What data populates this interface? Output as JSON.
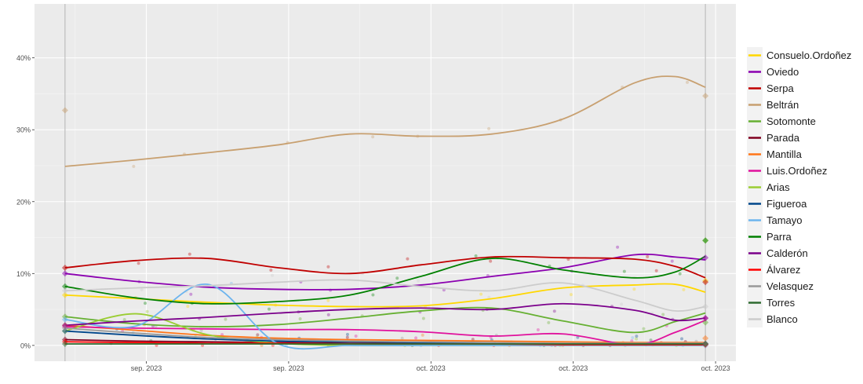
{
  "chart_data": {
    "type": "line",
    "title": "",
    "xlabel": "",
    "ylabel": "",
    "x_unit": "days from first poll",
    "xlim": [
      -3,
      66
    ],
    "ylim": [
      -2.2,
      47.5
    ],
    "grid": true,
    "legend_position": "right",
    "x_ticks": [
      {
        "x": 8,
        "label": "sep. 2023"
      },
      {
        "x": 22,
        "label": "sep. 2023"
      },
      {
        "x": 36,
        "label": "oct. 2023"
      },
      {
        "x": 50,
        "label": "oct. 2023"
      },
      {
        "x": 64,
        "label": "oct. 2023"
      }
    ],
    "y_ticks": [
      {
        "y": 0,
        "label": "0%"
      },
      {
        "y": 10,
        "label": "10%"
      },
      {
        "y": 20,
        "label": "20%"
      },
      {
        "y": 30,
        "label": "30%"
      },
      {
        "y": 40,
        "label": "40%"
      }
    ],
    "reference_lines_x": [
      0,
      63
    ],
    "x": [
      0,
      7,
      14,
      21,
      28,
      35,
      42,
      49,
      56,
      60,
      63
    ],
    "series": [
      {
        "name": "Consuelo.Ordoñez",
        "color": "#ffd700",
        "values": [
          7.0,
          6.5,
          6.0,
          5.6,
          5.4,
          5.5,
          6.5,
          8.0,
          8.4,
          8.5,
          7.4
        ],
        "end_marker": 9.0
      },
      {
        "name": "Oviedo",
        "color": "#8b00b0",
        "values": [
          10.0,
          8.9,
          8.1,
          7.8,
          7.8,
          8.4,
          9.6,
          10.8,
          12.6,
          12.3,
          11.9
        ],
        "end_marker": 12.2
      },
      {
        "name": "Serpa",
        "color": "#c00000",
        "values": [
          10.8,
          11.8,
          12.1,
          10.8,
          10.0,
          11.2,
          12.3,
          12.2,
          12.0,
          11.0,
          9.4
        ],
        "end_marker": 8.8
      },
      {
        "name": "Beltrán",
        "color": "#c8a070",
        "values": [
          24.9,
          25.8,
          26.8,
          27.9,
          29.4,
          29.1,
          29.4,
          31.5,
          36.5,
          37.4,
          35.9
        ],
        "end_marker": 34.7,
        "start_marker": 32.7
      },
      {
        "name": "Sotomonte",
        "color": "#66b032",
        "values": [
          4.0,
          3.0,
          2.6,
          2.9,
          3.8,
          4.8,
          5.2,
          3.4,
          1.8,
          3.3,
          4.5
        ],
        "end_marker": 3.2
      },
      {
        "name": "Parada",
        "color": "#800020",
        "values": [
          0.8,
          0.6,
          0.5,
          0.4,
          0.3,
          0.3,
          0.2,
          0.1,
          0.1,
          0.1,
          0.2
        ],
        "end_marker": 0.2
      },
      {
        "name": "Mantilla",
        "color": "#ff7518",
        "values": [
          2.8,
          2.1,
          1.4,
          1.0,
          0.8,
          0.7,
          0.6,
          0.5,
          0.4,
          0.4,
          0.4
        ],
        "end_marker": 1.0
      },
      {
        "name": "Luis.Ordoñez",
        "color": "#e0119d",
        "values": [
          2.6,
          2.4,
          2.3,
          2.2,
          2.2,
          1.9,
          1.3,
          1.6,
          0.1,
          1.8,
          3.5
        ],
        "end_marker": 3.8
      },
      {
        "name": "Arias",
        "color": "#9acd32",
        "values": [
          2.0,
          4.4,
          1.5,
          0.3,
          0.0,
          0.0,
          0.0,
          0.0,
          0.0,
          0.0,
          0.0
        ],
        "end_marker": 14.6
      },
      {
        "name": "Figueroa",
        "color": "#00468b",
        "values": [
          2.0,
          1.4,
          0.9,
          0.6,
          0.5,
          0.4,
          0.3,
          0.2,
          0.2,
          0.2,
          0.2
        ],
        "end_marker": 0.2
      },
      {
        "name": "Tamayo",
        "color": "#6cb4ee",
        "values": [
          3.6,
          2.7,
          8.5,
          0.2,
          0.0,
          0.0,
          0.0,
          0.0,
          0.0,
          0.0,
          0.0
        ],
        "end_marker": 0.0
      },
      {
        "name": "Parra",
        "color": "#008000",
        "values": [
          8.2,
          6.6,
          5.8,
          6.1,
          7.0,
          9.6,
          12.1,
          10.5,
          9.4,
          10.2,
          12.4
        ],
        "end_marker": 14.6
      },
      {
        "name": "Calderón",
        "color": "#7b008b",
        "values": [
          2.8,
          3.4,
          3.9,
          4.5,
          5.0,
          5.2,
          5.0,
          5.8,
          4.9,
          3.5,
          3.8
        ],
        "end_marker": 3.8
      },
      {
        "name": "Álvarez",
        "color": "#ff0000",
        "values": [
          0.5,
          0.4,
          0.3,
          0.3,
          0.2,
          0.2,
          0.2,
          0.1,
          0.1,
          0.1,
          0.1
        ],
        "end_marker": 0.1
      },
      {
        "name": "Velasquez",
        "color": "#999999",
        "values": [
          2.4,
          1.7,
          1.1,
          0.8,
          0.6,
          0.5,
          0.4,
          0.3,
          0.3,
          0.3,
          0.3
        ],
        "end_marker": 0.3
      },
      {
        "name": "Torres",
        "color": "#2e6b30",
        "values": [
          0.2,
          0.2,
          0.2,
          0.2,
          0.2,
          0.2,
          0.2,
          0.2,
          0.2,
          0.2,
          0.2
        ],
        "end_marker": 0.2
      },
      {
        "name": "Blanco",
        "color": "#cccccc",
        "values": [
          7.6,
          8.0,
          8.3,
          8.8,
          9.1,
          8.2,
          7.6,
          8.7,
          6.3,
          4.8,
          5.4
        ],
        "end_marker": 5.4
      }
    ]
  }
}
